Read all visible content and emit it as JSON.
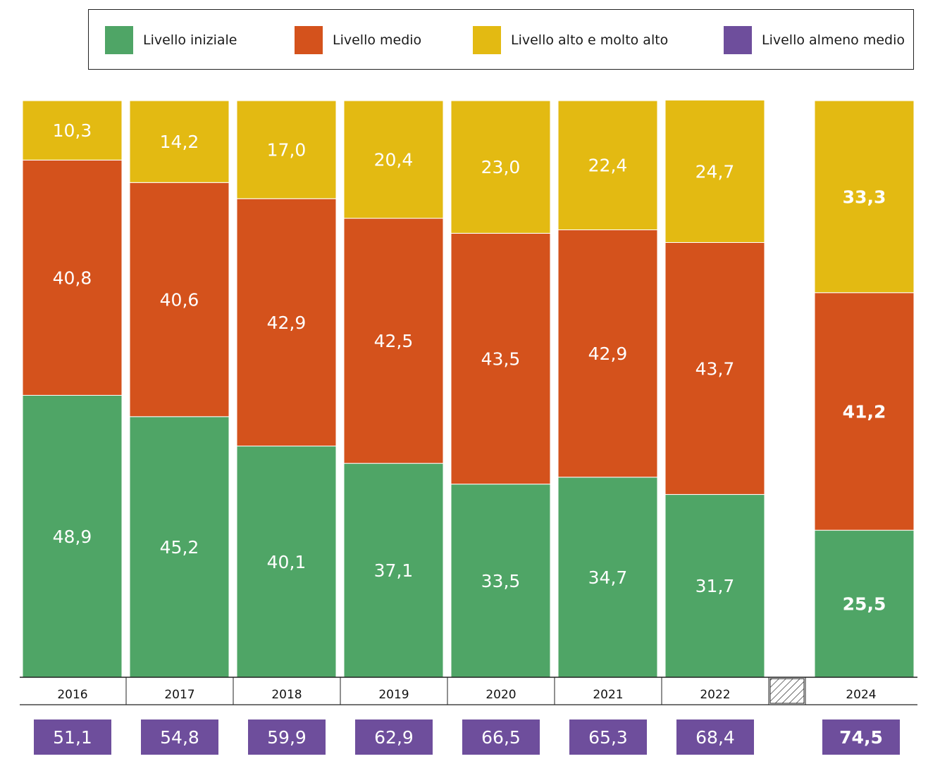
{
  "chart_data": {
    "type": "bar",
    "stacked": true,
    "percent": true,
    "categories": [
      "2016",
      "2017",
      "2018",
      "2019",
      "2020",
      "2021",
      "2022",
      "2024"
    ],
    "gap_after_category": "2022",
    "highlight_category": "2024",
    "series": [
      {
        "name": "Livello iniziale",
        "color": "#4fa566",
        "values": [
          48.9,
          45.2,
          40.1,
          37.1,
          33.5,
          34.7,
          31.7,
          25.5
        ],
        "labels": [
          "48,9",
          "45,2",
          "40,1",
          "37,1",
          "33,5",
          "34,7",
          "31,7",
          "25,5"
        ]
      },
      {
        "name": "Livello medio",
        "color": "#d4521c",
        "values": [
          40.8,
          40.6,
          42.9,
          42.5,
          43.5,
          42.9,
          43.7,
          41.2
        ],
        "labels": [
          "40,8",
          "40,6",
          "42,9",
          "42,5",
          "43,5",
          "42,9",
          "43,7",
          "41,2"
        ]
      },
      {
        "name": "Livello alto e molto alto",
        "color": "#e3ba12",
        "values": [
          10.3,
          14.2,
          17.0,
          20.4,
          23.0,
          22.4,
          24.7,
          33.3
        ],
        "labels": [
          "10,3",
          "14,2",
          "17,0",
          "20,4",
          "23,0",
          "22,4",
          "24,7",
          "33,3"
        ]
      }
    ],
    "summary_series": {
      "name": "Livello almeno medio",
      "color": "#6e4e9c",
      "values": [
        51.1,
        54.8,
        59.9,
        62.9,
        66.5,
        65.3,
        68.4,
        74.5
      ],
      "labels": [
        "51,1",
        "54,8",
        "59,9",
        "62,9",
        "66,5",
        "65,3",
        "68,4",
        "74,5"
      ]
    },
    "ylim": [
      0,
      100
    ],
    "legend_position": "top"
  },
  "legend": [
    {
      "label": "Livello iniziale",
      "color": "#4fa566"
    },
    {
      "label": "Livello medio",
      "color": "#d4521c"
    },
    {
      "label": "Livello alto e molto alto",
      "color": "#e3ba12"
    },
    {
      "label": "Livello almeno medio",
      "color": "#6e4e9c"
    }
  ]
}
